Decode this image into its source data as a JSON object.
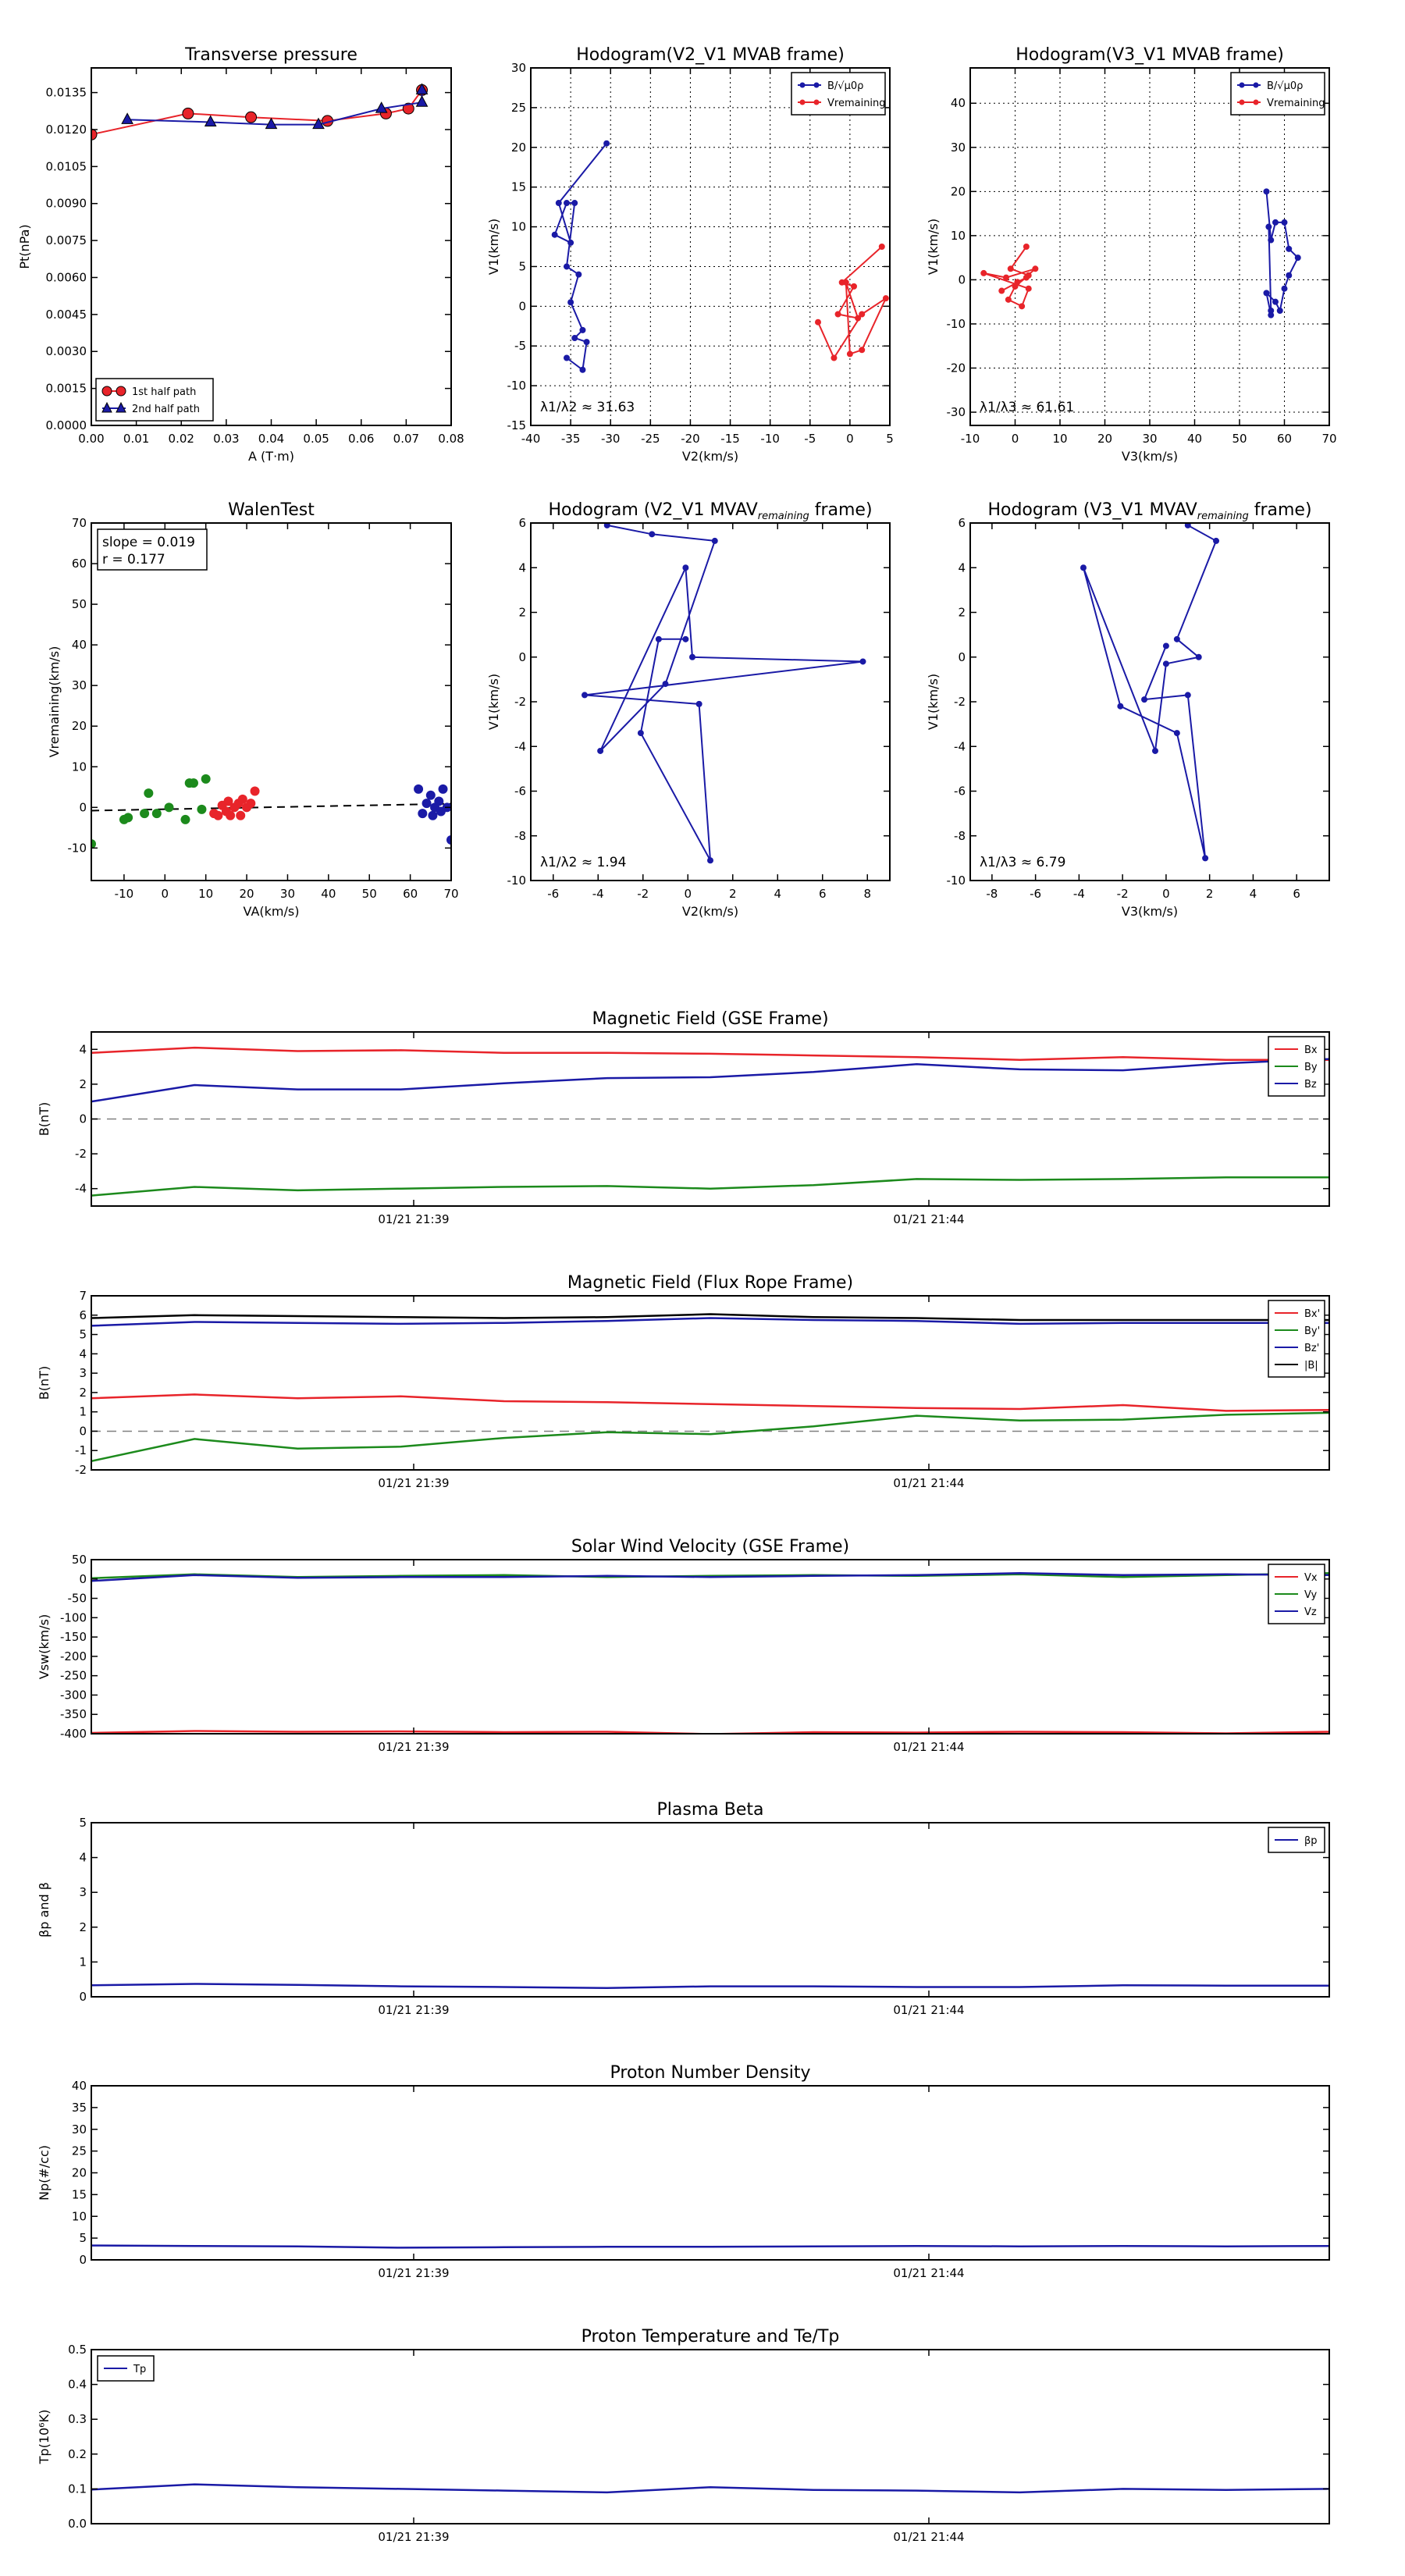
{
  "chart_data": [
    {
      "id": "transverse_pressure",
      "type": "scatter",
      "title": "Transverse pressure",
      "xlabel": "A (T·m)",
      "ylabel": "Pt(nPa)",
      "xlim": [
        0.0,
        0.08
      ],
      "ylim": [
        0.0,
        0.0145
      ],
      "xticks": [
        0.0,
        0.01,
        0.02,
        0.03,
        0.04,
        0.05,
        0.06,
        0.07,
        0.08
      ],
      "xtick_labels": [
        "0.00",
        "0.01",
        "0.02",
        "0.03",
        "0.04",
        "0.05",
        "0.06",
        "0.07",
        "0.08"
      ],
      "yticks": [
        0.0,
        0.0015,
        0.003,
        0.0045,
        0.006,
        0.0075,
        0.009,
        0.0105,
        0.012,
        0.0135
      ],
      "ytick_labels": [
        "0.0000",
        "0.0015",
        "0.0030",
        "0.0045",
        "0.0060",
        "0.0075",
        "0.0090",
        "0.0105",
        "0.0120",
        "0.0135"
      ],
      "grid": false,
      "legend": "lower-left",
      "series": [
        {
          "name": "1st half path",
          "color": "#e8242a",
          "marker": "circle",
          "x": [
            0.0,
            0.0215,
            0.0355,
            0.0525,
            0.0655,
            0.0705,
            0.0735
          ],
          "y": [
            0.0118,
            0.01265,
            0.0125,
            0.01235,
            0.01265,
            0.01285,
            0.0136
          ]
        },
        {
          "name": "2nd half path",
          "color": "#1a1aa6",
          "marker": "triangle",
          "x": [
            0.0735,
            0.0735,
            0.0645,
            0.0505,
            0.04,
            0.0265,
            0.008
          ],
          "y": [
            0.0136,
            0.0131,
            0.01285,
            0.0122,
            0.0122,
            0.0123,
            0.0124
          ]
        }
      ]
    },
    {
      "id": "hodogram_v2_v1_mvab",
      "type": "line",
      "title": "Hodogram(V2_V1 MVAB frame)",
      "xlabel": "V2(km/s)",
      "ylabel": "V1(km/s)",
      "xlim": [
        -40,
        5
      ],
      "ylim": [
        -15,
        30
      ],
      "xticks": [
        -40,
        -35,
        -30,
        -25,
        -20,
        -15,
        -10,
        -5,
        0,
        5
      ],
      "yticks": [
        -15,
        -10,
        -5,
        0,
        5,
        10,
        15,
        20,
        25,
        30
      ],
      "grid": true,
      "legend": "top-right",
      "annotation": "λ1/λ2 ≈ 31.63",
      "series": [
        {
          "name": "B/√μ0ρ",
          "color": "#1a1aa6",
          "x": [
            -30.5,
            -36.5,
            -35.0,
            -37.0,
            -35.5,
            -34.5,
            -35.5,
            -34.0,
            -35.0,
            -33.5,
            -34.5,
            -33.0,
            -33.5,
            -35.5
          ],
          "y": [
            20.5,
            13.0,
            8.0,
            9.0,
            13.0,
            13.0,
            5.0,
            4.0,
            0.5,
            -3.0,
            -4.0,
            -4.5,
            -8.0,
            -6.5
          ]
        },
        {
          "name": "Vremaining",
          "color": "#e8242a",
          "x": [
            4.0,
            -1.0,
            0.5,
            -1.5,
            1.0,
            -0.5,
            0.0,
            1.5,
            4.5,
            1.5,
            -2.0,
            -4.0
          ],
          "y": [
            7.5,
            3.0,
            2.5,
            -1.0,
            -1.5,
            3.0,
            -6.0,
            -5.5,
            1.0,
            -1.0,
            -6.5,
            -2.0
          ]
        }
      ]
    },
    {
      "id": "hodogram_v3_v1_mvab",
      "type": "line",
      "title": "Hodogram(V3_V1 MVAB frame)",
      "xlabel": "V3(km/s)",
      "ylabel": "V1(km/s)",
      "xlim": [
        -10,
        70
      ],
      "ylim": [
        -33,
        48
      ],
      "xticks": [
        -10,
        0,
        10,
        20,
        30,
        40,
        50,
        60,
        70
      ],
      "yticks": [
        -30,
        -20,
        -10,
        0,
        10,
        20,
        30,
        40
      ],
      "grid": true,
      "legend": "top-right",
      "annotation": "λ1/λ3 ≈ 61.61",
      "series": [
        {
          "name": "B/√μ0ρ",
          "color": "#1a1aa6",
          "x": [
            56.0,
            57.0,
            58.0,
            60.0,
            61.0,
            63.0,
            61.0,
            60.0,
            59.0,
            58.0,
            56.0,
            57.0,
            57.0,
            56.5
          ],
          "y": [
            20.0,
            9.0,
            13.0,
            13.0,
            7.0,
            5.0,
            1.0,
            -2.0,
            -7.0,
            -5.0,
            -3.0,
            -8.0,
            -7.0,
            12.0
          ]
        },
        {
          "name": "Vremaining",
          "color": "#e8242a",
          "x": [
            2.5,
            -1.0,
            3.0,
            0.0,
            4.5,
            -2.0,
            -7.0,
            3.0,
            1.5,
            -1.5,
            0.5,
            2.5,
            -3.0
          ],
          "y": [
            7.5,
            2.5,
            1.0,
            -1.5,
            2.5,
            0.5,
            1.5,
            -2.0,
            -6.0,
            -4.5,
            -0.5,
            0.5,
            -2.5
          ]
        }
      ]
    },
    {
      "id": "walen_test",
      "type": "scatter",
      "title": "WalenTest",
      "xlabel": "VA(km/s)",
      "ylabel": "Vremaining(km/s)",
      "xlim": [
        -18,
        70
      ],
      "ylim": [
        -18,
        70
      ],
      "xticks": [
        -10,
        0,
        10,
        20,
        30,
        40,
        50,
        60,
        70
      ],
      "yticks": [
        -10,
        0,
        10,
        20,
        30,
        40,
        50,
        60,
        70
      ],
      "grid": false,
      "annotation": [
        "slope = 0.019",
        "r = 0.177"
      ],
      "fit_line": {
        "x": [
          -18,
          70
        ],
        "y": [
          -0.8,
          0.9
        ]
      },
      "series": [
        {
          "color": "#1c8a1c",
          "x": [
            -18,
            -10,
            -9,
            -5,
            -4,
            -2,
            1,
            5,
            6,
            7,
            9,
            10
          ],
          "y": [
            -9,
            -3,
            -2.5,
            -1.5,
            3.5,
            -1.5,
            0,
            -3,
            6,
            6,
            -0.5,
            7
          ]
        },
        {
          "color": "#e8242a",
          "x": [
            12,
            13,
            14,
            15,
            15.5,
            16,
            17,
            18,
            18.5,
            19,
            20,
            21,
            22
          ],
          "y": [
            -1.5,
            -2,
            0.5,
            -1,
            1.5,
            -2,
            0,
            1,
            -2,
            2,
            0,
            1,
            4
          ]
        },
        {
          "color": "#1a1aa6",
          "x": [
            62,
            63,
            64,
            65,
            65.5,
            66,
            67,
            67.5,
            68,
            69,
            70
          ],
          "y": [
            4.5,
            -1.5,
            1,
            3,
            -2,
            0,
            1.5,
            -1,
            4.5,
            0,
            -8
          ]
        }
      ]
    },
    {
      "id": "hodogram_v2_v1_mvav",
      "type": "line",
      "title": "Hodogram (V2_V1 MVAV",
      "title_sub": "remaining",
      "title_tail": " frame)",
      "xlabel": "V2(km/s)",
      "ylabel": "V1(km/s)",
      "xlim": [
        -7,
        9
      ],
      "ylim": [
        -10,
        6
      ],
      "xticks": [
        -6,
        -4,
        -2,
        0,
        2,
        4,
        6,
        8
      ],
      "yticks": [
        -10,
        -8,
        -6,
        -4,
        -2,
        0,
        2,
        4,
        6
      ],
      "grid": false,
      "annotation": "λ1/λ2 ≈ 1.94",
      "series": [
        {
          "color": "#1a1aa6",
          "x": [
            -3.6,
            -1.6,
            1.2,
            -1.0,
            -3.9,
            -0.1,
            0.2,
            7.8,
            -4.6,
            0.5,
            1.0,
            -2.1,
            -1.3,
            -0.1
          ],
          "y": [
            5.9,
            5.5,
            5.2,
            -1.2,
            -4.2,
            4.0,
            0.0,
            -0.2,
            -1.7,
            -2.1,
            -9.1,
            -3.4,
            0.8,
            0.8
          ]
        }
      ]
    },
    {
      "id": "hodogram_v3_v1_mvav",
      "type": "line",
      "title": "Hodogram (V3_V1 MVAV",
      "title_sub": "remaining",
      "title_tail": " frame)",
      "xlabel": "V3(km/s)",
      "ylabel": "V1(km/s)",
      "xlim": [
        -9,
        7.5
      ],
      "ylim": [
        -10,
        6
      ],
      "xticks": [
        -8,
        -6,
        -4,
        -2,
        0,
        2,
        4,
        6
      ],
      "yticks": [
        -10,
        -8,
        -6,
        -4,
        -2,
        0,
        2,
        4,
        6
      ],
      "grid": false,
      "annotation": "λ1/λ3 ≈ 6.79",
      "series": [
        {
          "color": "#1a1aa6",
          "x": [
            1.0,
            2.3,
            0.5,
            1.5,
            0.0,
            -0.5,
            -3.8,
            -2.1,
            0.5,
            1.8,
            1.0,
            -1.0,
            0.0
          ],
          "y": [
            5.9,
            5.2,
            0.8,
            0.0,
            -0.3,
            -4.2,
            4.0,
            -2.2,
            -3.4,
            -9.0,
            -1.7,
            -1.9,
            0.5
          ]
        }
      ]
    },
    {
      "id": "magnetic_field_gse",
      "type": "line",
      "title": "Magnetic Field (GSE Frame)",
      "ylabel": "B(nT)",
      "ylim": [
        -5,
        5
      ],
      "yticks": [
        -4,
        -2,
        0,
        2,
        4
      ],
      "xtick_labels": [
        "01/21 21:39",
        "01/21 21:44"
      ],
      "legend": "top-right",
      "zero_line": true,
      "series": [
        {
          "name": "Bx",
          "color": "#e8242a",
          "values": [
            3.8,
            4.1,
            3.9,
            3.95,
            3.8,
            3.8,
            3.75,
            3.65,
            3.55,
            3.4,
            3.55,
            3.4,
            3.4
          ]
        },
        {
          "name": "By",
          "color": "#1c8a1c",
          "values": [
            -4.4,
            -3.9,
            -4.1,
            -4.0,
            -3.9,
            -3.85,
            -4.0,
            -3.8,
            -3.45,
            -3.5,
            -3.45,
            -3.35,
            -3.35
          ]
        },
        {
          "name": "Bz",
          "color": "#1a1aa6",
          "values": [
            1.0,
            1.95,
            1.7,
            1.7,
            2.05,
            2.35,
            2.4,
            2.7,
            3.15,
            2.85,
            2.8,
            3.2,
            3.45
          ]
        }
      ]
    },
    {
      "id": "magnetic_field_flux_rope",
      "type": "line",
      "title": "Magnetic Field (Flux Rope Frame)",
      "ylabel": "B(nT)",
      "ylim": [
        -2,
        7
      ],
      "yticks": [
        -2,
        -1,
        0,
        1,
        2,
        3,
        4,
        5,
        6,
        7
      ],
      "xtick_labels": [
        "01/21 21:39",
        "01/21 21:44"
      ],
      "legend": "top-right",
      "zero_line": true,
      "series": [
        {
          "name": "Bx'",
          "color": "#e8242a",
          "values": [
            1.7,
            1.9,
            1.7,
            1.8,
            1.55,
            1.5,
            1.4,
            1.3,
            1.2,
            1.15,
            1.35,
            1.05,
            1.1
          ]
        },
        {
          "name": "By'",
          "color": "#1c8a1c",
          "values": [
            -1.55,
            -0.4,
            -0.9,
            -0.8,
            -0.35,
            -0.05,
            -0.15,
            0.25,
            0.8,
            0.55,
            0.6,
            0.85,
            0.95
          ]
        },
        {
          "name": "Bz'",
          "color": "#1a1aa6",
          "values": [
            5.45,
            5.65,
            5.6,
            5.55,
            5.6,
            5.7,
            5.85,
            5.75,
            5.7,
            5.55,
            5.6,
            5.6,
            5.6
          ]
        },
        {
          "name": "|B|",
          "color": "#000000",
          "values": [
            5.85,
            6.0,
            5.95,
            5.9,
            5.85,
            5.9,
            6.05,
            5.9,
            5.85,
            5.75,
            5.75,
            5.75,
            5.75
          ]
        }
      ]
    },
    {
      "id": "solar_wind_velocity",
      "type": "line",
      "title": "Solar Wind Velocity (GSE Frame)",
      "ylabel": "Vsw(km/s)",
      "ylim": [
        -400,
        50
      ],
      "yticks": [
        -400,
        -350,
        -300,
        -250,
        -200,
        -150,
        -100,
        -50,
        0,
        50
      ],
      "xtick_labels": [
        "01/21 21:39",
        "01/21 21:44"
      ],
      "legend": "top-right",
      "series": [
        {
          "name": "Vx",
          "color": "#e8242a",
          "values": [
            -398,
            -393,
            -395,
            -394,
            -396,
            -395,
            -401,
            -396,
            -397,
            -395,
            -396,
            -399,
            -395
          ]
        },
        {
          "name": "Vy",
          "color": "#1c8a1c",
          "values": [
            2,
            12,
            5,
            8,
            10,
            5,
            8,
            10,
            8,
            12,
            5,
            10,
            15
          ]
        },
        {
          "name": "Vz",
          "color": "#1a1aa6",
          "values": [
            -5,
            10,
            3,
            5,
            5,
            8,
            5,
            8,
            10,
            15,
            10,
            12,
            10
          ]
        }
      ]
    },
    {
      "id": "plasma_beta",
      "type": "line",
      "title": "Plasma Beta",
      "ylabel": "βp and β",
      "ylim": [
        0,
        5
      ],
      "yticks": [
        0,
        1,
        2,
        3,
        4,
        5
      ],
      "xtick_labels": [
        "01/21 21:39",
        "01/21 21:44"
      ],
      "legend": "top-right",
      "series": [
        {
          "name": "βp",
          "color": "#1a1aa6",
          "values": [
            0.33,
            0.37,
            0.34,
            0.3,
            0.28,
            0.25,
            0.3,
            0.3,
            0.28,
            0.28,
            0.33,
            0.32,
            0.32
          ]
        }
      ]
    },
    {
      "id": "proton_number_density",
      "type": "line",
      "title": "Proton Number Density",
      "ylabel": "Np(#/cc)",
      "ylim": [
        0,
        40
      ],
      "yticks": [
        0,
        5,
        10,
        15,
        20,
        25,
        30,
        35,
        40
      ],
      "xtick_labels": [
        "01/21 21:39",
        "01/21 21:44"
      ],
      "series": [
        {
          "color": "#1a1aa6",
          "values": [
            3.3,
            3.2,
            3.1,
            2.8,
            2.9,
            3.0,
            3.0,
            3.1,
            3.2,
            3.1,
            3.2,
            3.1,
            3.2
          ]
        }
      ]
    },
    {
      "id": "proton_temperature",
      "type": "line",
      "title": "Proton Temperature and Te/Tp",
      "ylabel": "Tp(10⁶K)",
      "ylim": [
        0,
        0.5
      ],
      "yticks": [
        0.0,
        0.1,
        0.2,
        0.3,
        0.4,
        0.5
      ],
      "ytick_labels": [
        "0.0",
        "0.1",
        "0.2",
        "0.3",
        "0.4",
        "0.5"
      ],
      "xtick_labels": [
        "01/21 21:39",
        "01/21 21:44"
      ],
      "legend": "top-left",
      "series": [
        {
          "name": "Tp",
          "color": "#1a1aa6",
          "values": [
            0.098,
            0.113,
            0.105,
            0.1,
            0.095,
            0.09,
            0.105,
            0.097,
            0.095,
            0.09,
            0.1,
            0.097,
            0.1
          ]
        }
      ]
    }
  ]
}
